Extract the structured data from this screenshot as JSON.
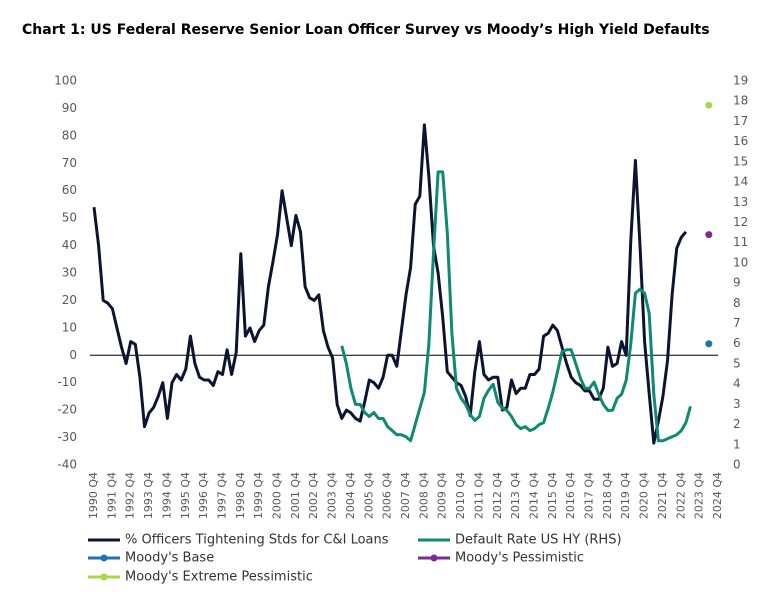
{
  "chart_data": {
    "type": "line",
    "title": "Chart 1: US Federal Reserve Senior Loan Officer Survey vs Moody’s High Yield Defaults",
    "categories": [
      "1990 Q4",
      null,
      null,
      null,
      "1991 Q4",
      null,
      null,
      null,
      "1992 Q4",
      null,
      null,
      null,
      "1993 Q4",
      null,
      null,
      null,
      "1994 Q4",
      null,
      null,
      null,
      "1995 Q4",
      null,
      null,
      null,
      "1996 Q4",
      null,
      null,
      null,
      "1997 Q4",
      null,
      null,
      null,
      "1998 Q4",
      null,
      null,
      null,
      "1999 Q4",
      null,
      null,
      null,
      "2000 Q4",
      null,
      null,
      null,
      "2001 Q4",
      null,
      null,
      null,
      "2002 Q4",
      null,
      null,
      null,
      "2003 Q4",
      null,
      null,
      null,
      "2004 Q4",
      null,
      null,
      null,
      "2005 Q4",
      null,
      null,
      null,
      "2006 Q4",
      null,
      null,
      null,
      "2007 Q4",
      null,
      null,
      null,
      "2008 Q4",
      null,
      null,
      null,
      "2009 Q4",
      null,
      null,
      null,
      "2010 Q4",
      null,
      null,
      null,
      "2011 Q4",
      null,
      null,
      null,
      "2012 Q4",
      null,
      null,
      null,
      "2013 Q4",
      null,
      null,
      null,
      "2014 Q4",
      null,
      null,
      null,
      "2015 Q4",
      null,
      null,
      null,
      "2016 Q4",
      null,
      null,
      null,
      "2017 Q4",
      null,
      null,
      null,
      "2018 Q4",
      null,
      null,
      null,
      "2019 Q4",
      null,
      null,
      null,
      "2020 Q4",
      null,
      null,
      null,
      "2021 Q4",
      null,
      null,
      null,
      "2022 Q4",
      null,
      null,
      null,
      "2023 Q4",
      null,
      null,
      null,
      "2024 Q4"
    ],
    "series": [
      {
        "name": "% Officers Tightening Stds for C&I Loans",
        "color": "#0b1530",
        "style": "line",
        "values": [
          54,
          40,
          20,
          19,
          17,
          10,
          3,
          -3,
          5,
          4,
          -8,
          -26,
          -21,
          -19,
          -15,
          -10,
          -23,
          -10,
          -7,
          -9,
          -5,
          7,
          -3,
          -8,
          -9,
          -9,
          -11,
          -6,
          -7,
          2,
          -7,
          1,
          37,
          7,
          10,
          5,
          9,
          11,
          25,
          34,
          44,
          60,
          50,
          40,
          51,
          45,
          25,
          21,
          20,
          22,
          9,
          3,
          -1,
          -18,
          -23,
          -20,
          -21,
          -23,
          -24,
          -17,
          -9,
          -10,
          -12,
          -8,
          0,
          0,
          -4,
          9,
          22,
          32,
          55,
          58,
          84,
          65,
          40,
          30,
          14,
          -6,
          -8,
          -10,
          -11,
          -15,
          -22,
          -6,
          5,
          -7,
          -9,
          -8,
          -8,
          -20,
          -19,
          -9,
          -14,
          -12,
          -12,
          -7,
          -7,
          -5,
          7,
          8,
          11,
          9,
          3,
          -3,
          -8,
          -10,
          -11,
          -13,
          -13,
          -16,
          -16,
          -12,
          3,
          -4,
          -3,
          5,
          0,
          42,
          71,
          40,
          5,
          -14,
          -32,
          -24,
          -15,
          -2,
          22,
          39,
          43,
          45,
          null,
          null,
          null,
          null,
          null,
          null,
          null
        ]
      },
      {
        "name": "Default Rate US HY (RHS)",
        "color": "#0f8a72",
        "style": "line",
        "axis": "y2",
        "values": [
          null,
          null,
          null,
          null,
          null,
          null,
          null,
          null,
          null,
          null,
          null,
          null,
          null,
          null,
          null,
          null,
          null,
          null,
          null,
          null,
          null,
          null,
          null,
          null,
          null,
          null,
          null,
          null,
          null,
          null,
          null,
          null,
          null,
          null,
          null,
          null,
          null,
          null,
          null,
          null,
          null,
          null,
          null,
          null,
          null,
          null,
          null,
          null,
          null,
          null,
          null,
          null,
          null,
          null,
          5.9,
          5.0,
          3.8,
          3.0,
          3.0,
          2.6,
          2.4,
          2.6,
          2.3,
          2.3,
          1.9,
          1.7,
          1.5,
          1.5,
          1.4,
          1.2,
          2.0,
          2.8,
          3.6,
          6.0,
          10.5,
          14.5,
          14.5,
          11.5,
          6.5,
          3.8,
          3.3,
          3.0,
          2.5,
          2.2,
          2.4,
          3.3,
          3.7,
          4.0,
          3.1,
          2.8,
          2.7,
          2.4,
          2.0,
          1.8,
          1.9,
          1.7,
          1.8,
          2.0,
          2.1,
          2.8,
          3.6,
          4.6,
          5.6,
          5.7,
          5.7,
          5.0,
          4.3,
          3.8,
          3.8,
          4.1,
          3.5,
          3.0,
          2.7,
          2.7,
          3.3,
          3.5,
          4.2,
          6.0,
          8.5,
          8.7,
          8.5,
          7.5,
          3.5,
          1.2,
          1.2,
          1.3,
          1.4,
          1.5,
          1.7,
          2.1,
          2.9,
          null,
          null,
          null,
          null,
          null,
          null
        ]
      },
      {
        "name": "Moody's Base",
        "color": "#1a75b0",
        "style": "marker",
        "axis": "y2",
        "values": [
          null,
          null,
          null,
          null,
          null,
          null,
          null,
          null,
          null,
          null,
          null,
          null,
          null,
          null,
          null,
          null,
          null,
          null,
          null,
          null,
          null,
          null,
          null,
          null,
          null,
          null,
          null,
          null,
          null,
          null,
          null,
          null,
          null,
          null,
          null,
          null,
          null,
          null,
          null,
          null,
          null,
          null,
          null,
          null,
          null,
          null,
          null,
          null,
          null,
          null,
          null,
          null,
          null,
          null,
          null,
          null,
          null,
          null,
          null,
          null,
          null,
          null,
          null,
          null,
          null,
          null,
          null,
          null,
          null,
          null,
          null,
          null,
          null,
          null,
          null,
          null,
          null,
          null,
          null,
          null,
          null,
          null,
          null,
          null,
          null,
          null,
          null,
          null,
          null,
          null,
          null,
          null,
          null,
          null,
          null,
          null,
          null,
          null,
          null,
          null,
          null,
          null,
          null,
          null,
          null,
          null,
          null,
          null,
          null,
          null,
          null,
          null,
          null,
          null,
          null,
          null,
          null,
          null,
          null,
          null,
          null,
          null,
          null,
          null,
          null,
          null,
          null,
          null,
          null,
          null,
          null,
          null,
          null,
          null,
          6.0,
          null,
          null
        ]
      },
      {
        "name": "Moody's Pessimistic",
        "color": "#7b2d8e",
        "style": "marker",
        "axis": "y2",
        "values": [
          null,
          null,
          null,
          null,
          null,
          null,
          null,
          null,
          null,
          null,
          null,
          null,
          null,
          null,
          null,
          null,
          null,
          null,
          null,
          null,
          null,
          null,
          null,
          null,
          null,
          null,
          null,
          null,
          null,
          null,
          null,
          null,
          null,
          null,
          null,
          null,
          null,
          null,
          null,
          null,
          null,
          null,
          null,
          null,
          null,
          null,
          null,
          null,
          null,
          null,
          null,
          null,
          null,
          null,
          null,
          null,
          null,
          null,
          null,
          null,
          null,
          null,
          null,
          null,
          null,
          null,
          null,
          null,
          null,
          null,
          null,
          null,
          null,
          null,
          null,
          null,
          null,
          null,
          null,
          null,
          null,
          null,
          null,
          null,
          null,
          null,
          null,
          null,
          null,
          null,
          null,
          null,
          null,
          null,
          null,
          null,
          null,
          null,
          null,
          null,
          null,
          null,
          null,
          null,
          null,
          null,
          null,
          null,
          null,
          null,
          null,
          null,
          null,
          null,
          null,
          null,
          null,
          null,
          null,
          null,
          null,
          null,
          null,
          null,
          null,
          null,
          null,
          null,
          null,
          null,
          null,
          null,
          null,
          null,
          11.4,
          null,
          null
        ]
      },
      {
        "name": "Moody's Extreme Pessimistic",
        "color": "#a8d84a",
        "style": "marker",
        "axis": "y2",
        "values": [
          null,
          null,
          null,
          null,
          null,
          null,
          null,
          null,
          null,
          null,
          null,
          null,
          null,
          null,
          null,
          null,
          null,
          null,
          null,
          null,
          null,
          null,
          null,
          null,
          null,
          null,
          null,
          null,
          null,
          null,
          null,
          null,
          null,
          null,
          null,
          null,
          null,
          null,
          null,
          null,
          null,
          null,
          null,
          null,
          null,
          null,
          null,
          null,
          null,
          null,
          null,
          null,
          null,
          null,
          null,
          null,
          null,
          null,
          null,
          null,
          null,
          null,
          null,
          null,
          null,
          null,
          null,
          null,
          null,
          null,
          null,
          null,
          null,
          null,
          null,
          null,
          null,
          null,
          null,
          null,
          null,
          null,
          null,
          null,
          null,
          null,
          null,
          null,
          null,
          null,
          null,
          null,
          null,
          null,
          null,
          null,
          null,
          null,
          null,
          null,
          null,
          null,
          null,
          null,
          null,
          null,
          null,
          null,
          null,
          null,
          null,
          null,
          null,
          null,
          null,
          null,
          null,
          null,
          null,
          null,
          null,
          null,
          null,
          null,
          null,
          null,
          null,
          null,
          null,
          null,
          null,
          null,
          null,
          null,
          17.8,
          null,
          null
        ]
      }
    ],
    "ylim": [
      -40,
      100
    ],
    "yticks": [
      -40,
      -30,
      -20,
      -10,
      0,
      10,
      20,
      30,
      40,
      50,
      60,
      70,
      80,
      90,
      100
    ],
    "y2lim": [
      0,
      19
    ],
    "y2ticks": [
      0,
      1,
      2,
      3,
      4,
      5,
      6,
      7,
      8,
      9,
      10,
      11,
      12,
      13,
      14,
      15,
      16,
      17,
      18,
      19
    ],
    "zero_line": true,
    "legend": "bottom"
  }
}
